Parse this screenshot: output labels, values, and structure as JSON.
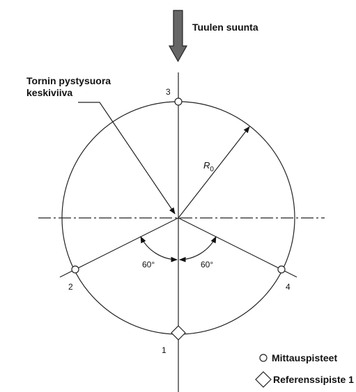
{
  "wind": {
    "label": "Tuulen suunta"
  },
  "axis_label": {
    "line1": "Tornin pystysuora",
    "line2": "keskiviiva"
  },
  "radius_label": {
    "main": "R",
    "sub": "0"
  },
  "angles": [
    "60°",
    "60°"
  ],
  "points": [
    "1",
    "2",
    "3",
    "4"
  ],
  "legend": {
    "circle": "Mittauspisteet",
    "diamond": "Referenssipiste 1"
  }
}
